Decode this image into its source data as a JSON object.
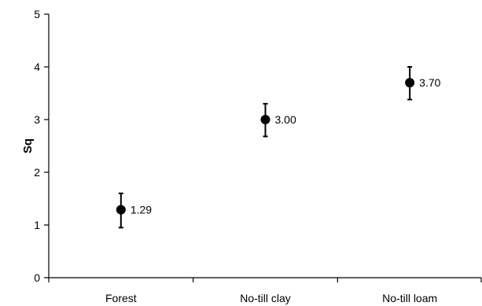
{
  "chart_data": {
    "type": "scatter",
    "title": "",
    "xlabel": "",
    "ylabel": "Sq",
    "ylim": [
      0,
      5
    ],
    "yticks": [
      0,
      1,
      2,
      3,
      4,
      5
    ],
    "grid": false,
    "categories": [
      "Forest",
      "No-till clay",
      "No-till loam"
    ],
    "series": [
      {
        "values": [
          1.29,
          3.0,
          3.7
        ],
        "error_low": [
          0.95,
          2.68,
          3.38
        ],
        "error_high": [
          1.6,
          3.3,
          4.0
        ],
        "data_labels": [
          "1.29",
          "3.00",
          "3.70"
        ],
        "color": "#000000"
      }
    ]
  }
}
